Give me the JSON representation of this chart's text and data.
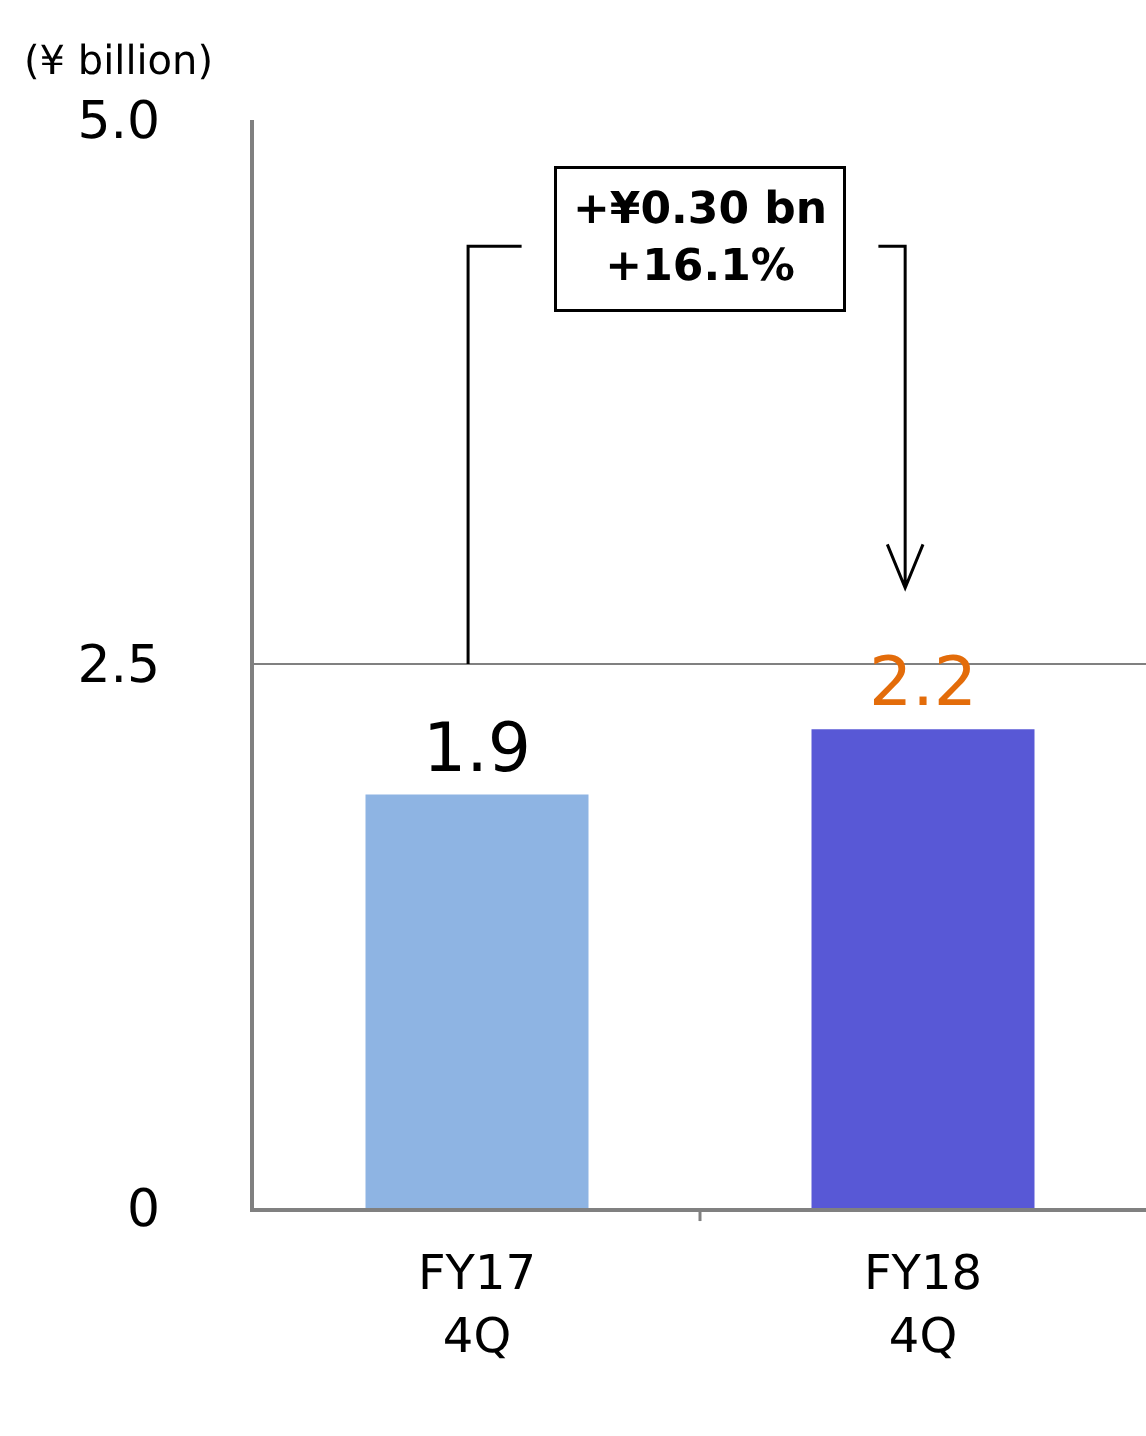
{
  "chart_data": {
    "type": "bar",
    "ylabel": "(¥ billion)",
    "categories": [
      "FY17\n4Q",
      "FY18\n4Q"
    ],
    "values": [
      1.9,
      2.2
    ],
    "colors": [
      "#8eb4e3",
      "#5858d6"
    ],
    "data_labels": true,
    "ylim": [
      0,
      5.0
    ],
    "yticks": [
      0,
      {
        "value": 2.5,
        "label": "2.5"
      },
      {
        "value": 5.0,
        "label": "5.0"
      }
    ],
    "grid": "y",
    "legend": false,
    "annotations": [
      "+¥0.30 bn\n+16.1%"
    ]
  }
}
